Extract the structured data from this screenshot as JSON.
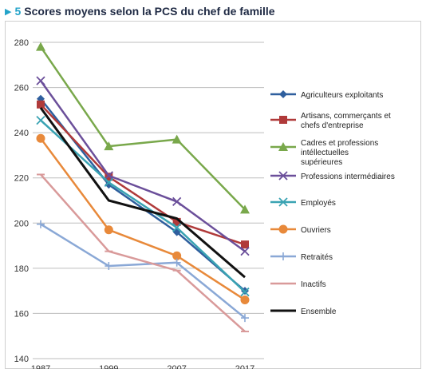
{
  "header": {
    "marker": "▶",
    "number": "5",
    "title": "Scores moyens selon la PCS du chef de famille"
  },
  "chart_data": {
    "type": "line",
    "title": "Scores moyens selon la PCS du chef de famille",
    "xlabel": "",
    "ylabel": "",
    "categories": [
      "1987",
      "1999",
      "2007",
      "2017"
    ],
    "ylim": [
      140,
      280
    ],
    "yticks": [
      140,
      160,
      180,
      200,
      220,
      240,
      260,
      280
    ],
    "grid": true,
    "legend": "right",
    "series": [
      {
        "name": "Agriculteurs exploitants",
        "values": [
          255,
          217,
          196,
          170
        ],
        "color": "#2f5f9e",
        "marker": "diamond"
      },
      {
        "name": "Artisans, commerçants et chefs d'entreprise",
        "values": [
          252.5,
          220.5,
          200.5,
          190.5
        ],
        "color": "#b03a3a",
        "marker": "square"
      },
      {
        "name": "Cadres et professions intéllectuelles supérieures",
        "values": [
          278,
          234,
          237,
          206
        ],
        "color": "#79a84b",
        "marker": "triangle"
      },
      {
        "name": "Professions intermédiaires",
        "values": [
          263,
          221,
          209.5,
          187.5
        ],
        "color": "#6b4f9a",
        "marker": "x"
      },
      {
        "name": "Employés",
        "values": [
          245.5,
          218,
          198,
          169.5
        ],
        "color": "#3aa3b3",
        "marker": "x"
      },
      {
        "name": "Ouvriers",
        "values": [
          237.5,
          197,
          185.5,
          166
        ],
        "color": "#e8893a",
        "marker": "circle"
      },
      {
        "name": "Retraités",
        "values": [
          199.5,
          181,
          182.5,
          158
        ],
        "color": "#8aa8d6",
        "marker": "plus"
      },
      {
        "name": "Inactifs",
        "values": [
          221.5,
          187.5,
          179,
          152
        ],
        "color": "#d99a9a",
        "marker": "dash"
      },
      {
        "name": "Ensemble",
        "values": [
          251,
          210,
          202,
          176
        ],
        "color": "#111111",
        "marker": "none"
      }
    ]
  }
}
